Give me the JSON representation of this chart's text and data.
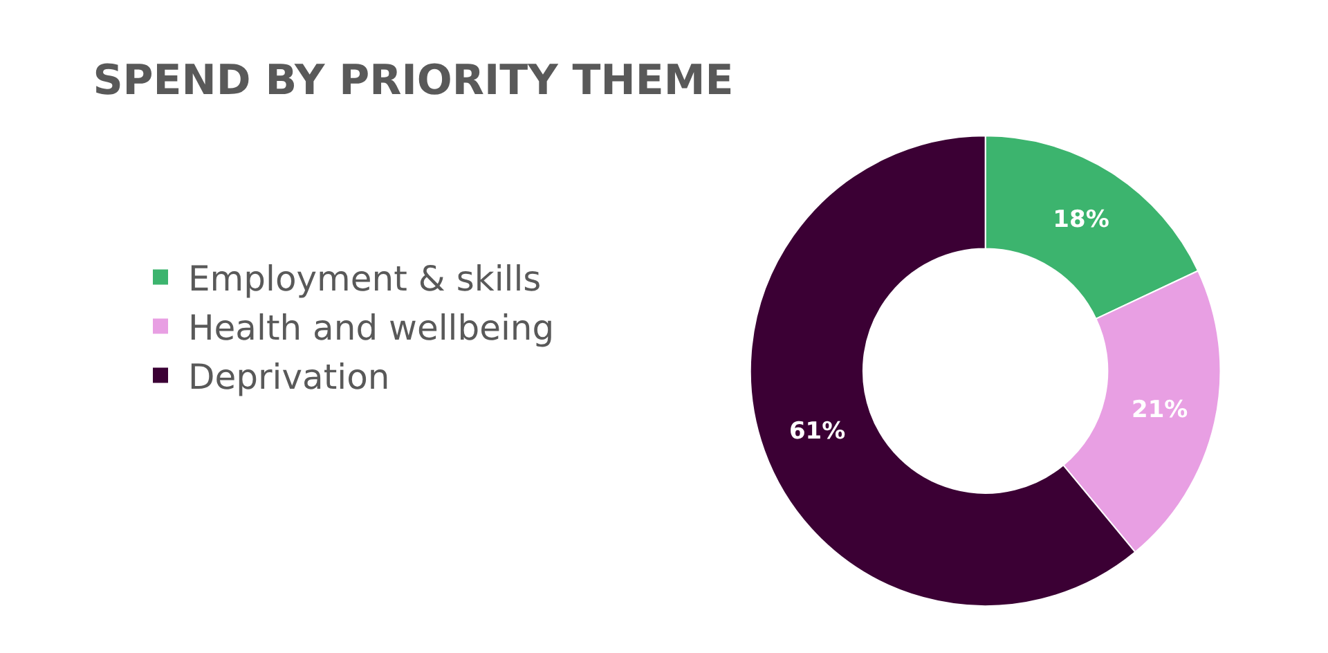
{
  "chart_data": {
    "type": "donut",
    "title": "SPEND BY PRIORITY THEME",
    "categories": [
      "Employment & skills",
      "Health and wellbeing",
      "Deprivation"
    ],
    "values": [
      18,
      21,
      61
    ],
    "colors": [
      "#3cb46e",
      "#e89fe3",
      "#3b0034"
    ],
    "value_labels": [
      "18%",
      "21%",
      "61%"
    ],
    "legend": "left"
  }
}
